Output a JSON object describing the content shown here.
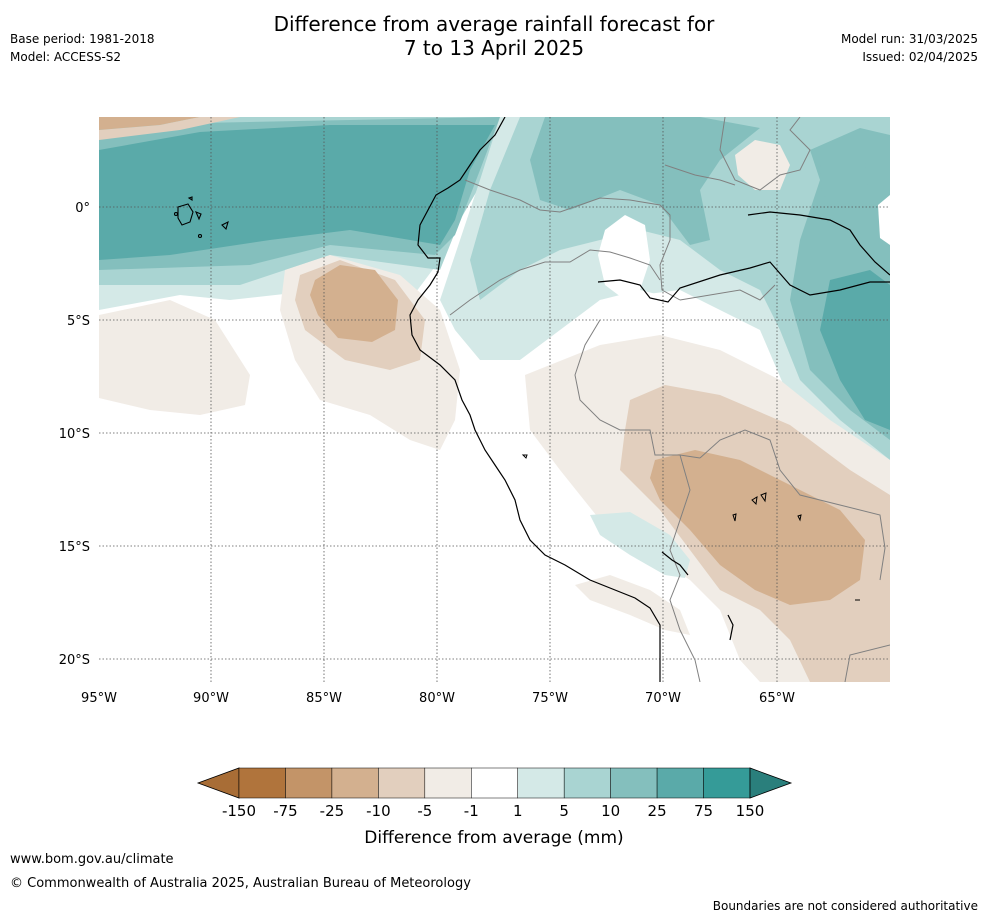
{
  "title_line1": "Difference from average rainfall forecast for",
  "title_line2": "7 to 13 April 2025",
  "base_period": "Base period: 1981-2018",
  "model": "Model: ACCESS-S2",
  "model_run": "Model run: 31/03/2025",
  "issued": "Issued: 02/04/2025",
  "map": {
    "lon_labels": [
      "95°W",
      "90°W",
      "85°W",
      "80°W",
      "75°W",
      "70°W",
      "65°W"
    ],
    "lat_labels": [
      "0°",
      "5°S",
      "10°S",
      "15°S",
      "20°S"
    ],
    "region": "Western South America (Ecuador, Peru, Colombia, Brazil, Bolivia, Chile)"
  },
  "legend": {
    "title": "Difference from average (mm)",
    "ticks": [
      "-150",
      "-75",
      "-25",
      "-10",
      "-5",
      "-1",
      "1",
      "5",
      "10",
      "25",
      "75",
      "150"
    ],
    "colors": [
      "#a86d36",
      "#b0743c",
      "#c39468",
      "#d3b08f",
      "#e2cfbe",
      "#f1ece6",
      "#ffffff",
      "#d4e9e7",
      "#a9d4d2",
      "#84bfbd",
      "#5aaaa9",
      "#359b98",
      "#2a7f7c"
    ]
  },
  "footer": {
    "url": "www.bom.gov.au/climate",
    "copyright": "© Commonwealth of Australia 2025, Australian Bureau of Meteorology",
    "disclaimer": "Boundaries are not considered authoritative"
  }
}
